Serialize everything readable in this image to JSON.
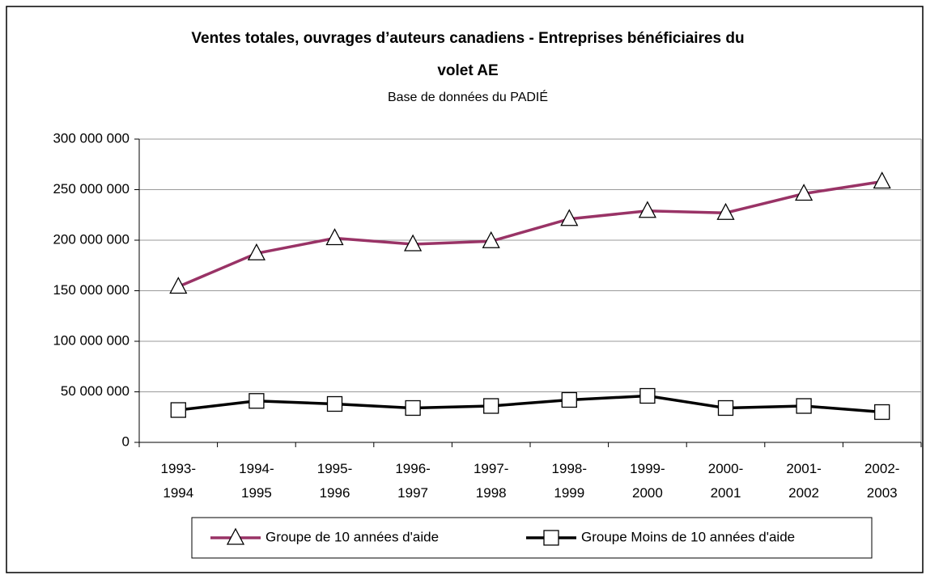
{
  "chart_data": {
    "type": "line",
    "title": [
      "Ventes totales, ouvrages d’auteurs canadiens - Entreprises bénéficiaires du",
      "volet AE"
    ],
    "subtitle": "Base de données du PADIÉ",
    "categories": [
      "1993-1994",
      "1994-1995",
      "1995-1996",
      "1996-1997",
      "1997-1998",
      "1998-1999",
      "1999-2000",
      "2000-2001",
      "2001-2002",
      "2002-2003"
    ],
    "series": [
      {
        "name": "Groupe de 10 années d'aide",
        "color": "#993366",
        "marker": "triangle",
        "values": [
          154000000,
          187000000,
          202000000,
          196000000,
          199000000,
          221000000,
          229000000,
          227000000,
          246000000,
          258000000
        ]
      },
      {
        "name": "Groupe Moins de 10 années d'aide",
        "color": "#000000",
        "marker": "square",
        "values": [
          32000000,
          41000000,
          38000000,
          34000000,
          36000000,
          42000000,
          46000000,
          34000000,
          36000000,
          30000000
        ]
      }
    ],
    "ylim": [
      0,
      300000000
    ],
    "yticks": [
      {
        "value": 0,
        "label": "0"
      },
      {
        "value": 50000000,
        "label": "50 000 000"
      },
      {
        "value": 100000000,
        "label": "100 000 000"
      },
      {
        "value": 150000000,
        "label": "150 000 000"
      },
      {
        "value": 200000000,
        "label": "200 000 000"
      },
      {
        "value": 250000000,
        "label": "250 000 000"
      },
      {
        "value": 300000000,
        "label": "300 000 000"
      }
    ],
    "grid": true,
    "legend": "bottom"
  }
}
